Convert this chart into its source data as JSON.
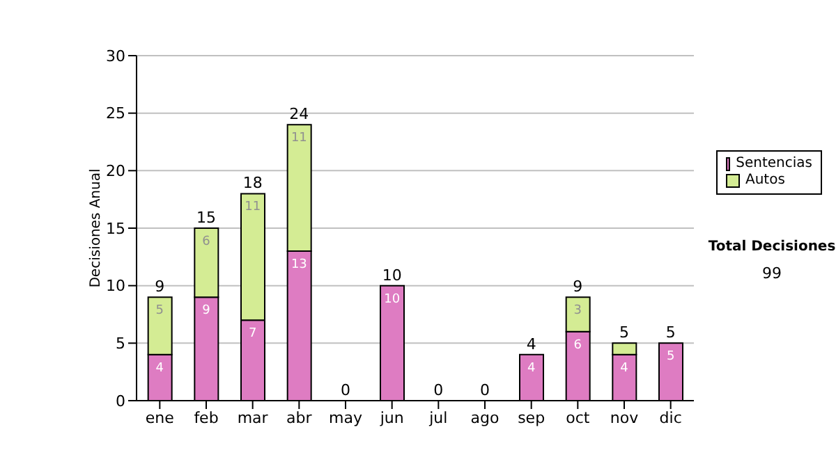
{
  "chart_data": {
    "type": "bar",
    "stacked": true,
    "ylabel": "Decisiones Anual",
    "categories": [
      "ene",
      "feb",
      "mar",
      "abr",
      "may",
      "jun",
      "jul",
      "ago",
      "sep",
      "oct",
      "nov",
      "dic"
    ],
    "series": [
      {
        "name": "Sentencias",
        "color": "#de7cc2",
        "values": [
          4,
          9,
          7,
          13,
          0,
          10,
          0,
          0,
          4,
          6,
          4,
          5
        ],
        "value_labels": [
          "4",
          "9",
          "7",
          "13",
          null,
          "10",
          null,
          null,
          "4",
          "6",
          "4",
          "5"
        ]
      },
      {
        "name": "Autos",
        "color": "#d4ec94",
        "values": [
          5,
          6,
          11,
          11,
          0,
          0,
          0,
          0,
          0,
          3,
          1,
          0
        ],
        "value_labels": [
          "5",
          "6",
          "11",
          "11",
          null,
          null,
          null,
          null,
          null,
          "3",
          null,
          null
        ]
      }
    ],
    "totals": [
      "9",
      "15",
      "18",
      "24",
      "0",
      "10",
      "0",
      "0",
      "4",
      "9",
      "5",
      "5"
    ],
    "ylim": [
      0,
      30
    ],
    "yticks": [
      0,
      5,
      10,
      15,
      20,
      25,
      30
    ],
    "grid": "y",
    "legend": "right",
    "annotations": [
      "Total Decisiones",
      "99"
    ]
  }
}
